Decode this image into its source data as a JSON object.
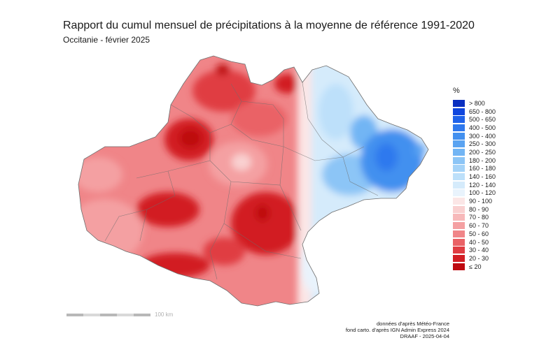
{
  "title": "Rapport du cumul mensuel de précipitations à la moyenne de référence 1991-2020",
  "subtitle": "Occitanie - février 2025",
  "legend": {
    "unit": "%",
    "classes": [
      {
        "label": "> 800",
        "color": "#0a2fc0"
      },
      {
        "label": "650 - 800",
        "color": "#1046de"
      },
      {
        "label": "500 - 650",
        "color": "#1f62ea"
      },
      {
        "label": "400 - 500",
        "color": "#2f79ee"
      },
      {
        "label": "300 - 400",
        "color": "#4390ef"
      },
      {
        "label": "250 - 300",
        "color": "#5aa3f1"
      },
      {
        "label": "200 - 250",
        "color": "#72b5f4"
      },
      {
        "label": "180 - 200",
        "color": "#8cc5f6"
      },
      {
        "label": "160 - 180",
        "color": "#a5d3f8"
      },
      {
        "label": "140 - 160",
        "color": "#bde0fa"
      },
      {
        "label": "120 - 140",
        "color": "#d5ebfb"
      },
      {
        "label": "100 - 120",
        "color": "#e9f3fc"
      },
      {
        "label": "90 - 100",
        "color": "#fbe6e6"
      },
      {
        "label": "80 - 90",
        "color": "#f9d0d0"
      },
      {
        "label": "70 - 80",
        "color": "#f7b9ba"
      },
      {
        "label": "60 - 70",
        "color": "#f4a0a2"
      },
      {
        "label": "50 - 60",
        "color": "#f08588"
      },
      {
        "label": "40 - 50",
        "color": "#ea6266"
      },
      {
        "label": "30 - 40",
        "color": "#e03d43"
      },
      {
        "label": "20 - 30",
        "color": "#d21e24"
      },
      {
        "label": "≤ 20",
        "color": "#be0a10"
      }
    ]
  },
  "scalebar": {
    "label": "100 km",
    "colors": [
      "#b8b8b8",
      "#d9d9d9",
      "#b8b8b8",
      "#d9d9d9",
      "#b8b8b8"
    ]
  },
  "credits": [
    "données d'après Météo-France",
    "fond carto. d'après IGN Admin Express 2024",
    "DRAAF - 2025-04-04"
  ]
}
